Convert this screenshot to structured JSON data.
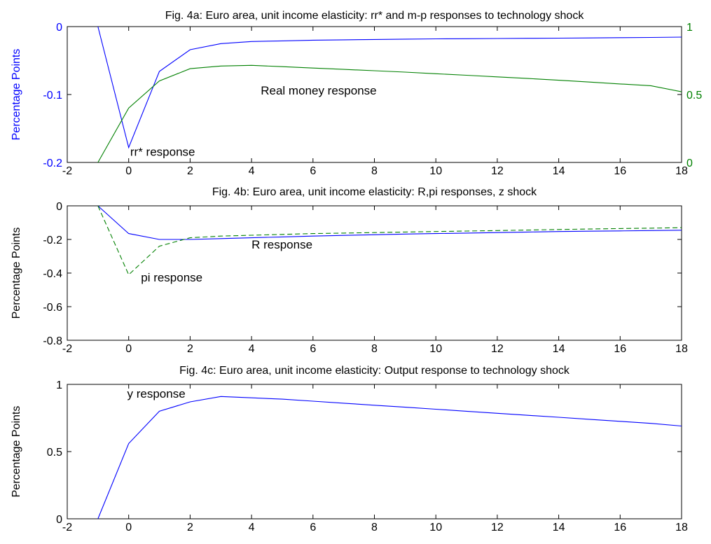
{
  "chart_data": [
    {
      "type": "line",
      "title": "Fig. 4a: Euro area, unit income elasticity: rr* and m-p responses to technology shock",
      "xlabel": "",
      "ylabel": "Percentage Points",
      "xlim": [
        -2,
        18
      ],
      "xticks": [
        "-2",
        "0",
        "2",
        "4",
        "6",
        "8",
        "10",
        "12",
        "14",
        "16",
        "18"
      ],
      "ylim": [
        -0.2,
        0
      ],
      "yticks": [
        "0",
        "-0.1",
        "-0.2"
      ],
      "y2lim": [
        0,
        1
      ],
      "y2ticks": [
        "1",
        "0.5",
        "0"
      ],
      "ylabel_color": "#0000ff",
      "y2_color": "#008000",
      "grid": false,
      "x": [
        -1,
        0,
        1,
        2,
        3,
        4,
        5,
        6,
        7,
        8,
        9,
        10,
        11,
        12,
        13,
        14,
        15,
        16,
        17,
        18
      ],
      "series": [
        {
          "axis": "left",
          "color": "#0000ff",
          "dash": "solid",
          "values": [
            0,
            -0.178,
            -0.066,
            -0.034,
            -0.025,
            -0.022,
            -0.021,
            -0.02,
            -0.0195,
            -0.019,
            -0.0185,
            -0.018,
            -0.0178,
            -0.0175,
            -0.0172,
            -0.017,
            -0.0167,
            -0.0163,
            -0.016,
            -0.0155
          ]
        },
        {
          "axis": "right",
          "color": "#008000",
          "dash": "solid",
          "values": [
            0,
            0.4,
            0.6,
            0.69,
            0.71,
            0.715,
            0.705,
            0.695,
            0.685,
            0.675,
            0.665,
            0.653,
            0.642,
            0.63,
            0.618,
            0.605,
            0.592,
            0.578,
            0.565,
            0.52
          ]
        }
      ],
      "annotations": [
        {
          "text": "Real money response",
          "x": 4.3,
          "y": -0.1
        },
        {
          "text": "rr* response",
          "x": 0.05,
          "y": -0.19
        }
      ]
    },
    {
      "type": "line",
      "title": "Fig. 4b: Euro area, unit income elasticity: R,pi responses, z shock",
      "xlabel": "",
      "ylabel": "Percentage Points",
      "xlim": [
        -2,
        18
      ],
      "xticks": [
        "-2",
        "0",
        "2",
        "4",
        "6",
        "8",
        "10",
        "12",
        "14",
        "16",
        "18"
      ],
      "ylim": [
        -0.8,
        0
      ],
      "yticks": [
        "0",
        "-0.2",
        "-0.4",
        "-0.6",
        "-0.8"
      ],
      "grid": false,
      "x": [
        -1,
        0,
        1,
        2,
        3,
        4,
        5,
        6,
        7,
        8,
        9,
        10,
        11,
        12,
        13,
        14,
        15,
        16,
        17,
        18
      ],
      "series": [
        {
          "color": "#0000ff",
          "dash": "solid",
          "values": [
            0,
            -0.165,
            -0.2,
            -0.2,
            -0.195,
            -0.19,
            -0.185,
            -0.18,
            -0.176,
            -0.172,
            -0.168,
            -0.165,
            -0.162,
            -0.159,
            -0.156,
            -0.153,
            -0.151,
            -0.149,
            -0.147,
            -0.145
          ]
        },
        {
          "color": "#008000",
          "dash": "dashed",
          "values": [
            0,
            -0.41,
            -0.24,
            -0.19,
            -0.18,
            -0.175,
            -0.17,
            -0.165,
            -0.162,
            -0.159,
            -0.156,
            -0.153,
            -0.15,
            -0.147,
            -0.144,
            -0.141,
            -0.138,
            -0.135,
            -0.133,
            -0.13
          ]
        }
      ],
      "annotations": [
        {
          "text": "R response",
          "x": 4.0,
          "y": -0.255
        },
        {
          "text": "pi response",
          "x": 0.4,
          "y": -0.45
        }
      ]
    },
    {
      "type": "line",
      "title": "Fig. 4c: Euro area, unit income elasticity: Output response to technology shock",
      "xlabel": "",
      "ylabel": "Percentage Points",
      "xlim": [
        -2,
        18
      ],
      "xticks": [
        "-2",
        "0",
        "2",
        "4",
        "6",
        "8",
        "10",
        "12",
        "14",
        "16",
        "18"
      ],
      "ylim": [
        0,
        1
      ],
      "yticks": [
        "1",
        "0.5",
        "0"
      ],
      "grid": false,
      "x": [
        -1,
        0,
        1,
        2,
        3,
        4,
        5,
        6,
        7,
        8,
        9,
        10,
        11,
        12,
        13,
        14,
        15,
        16,
        17,
        18
      ],
      "series": [
        {
          "color": "#0000ff",
          "dash": "solid",
          "values": [
            0,
            0.56,
            0.8,
            0.87,
            0.91,
            0.9,
            0.89,
            0.875,
            0.86,
            0.845,
            0.83,
            0.815,
            0.8,
            0.785,
            0.77,
            0.755,
            0.74,
            0.725,
            0.71,
            0.69
          ]
        }
      ],
      "annotations": [
        {
          "text": "y response",
          "x": -0.05,
          "y": 0.9
        }
      ]
    }
  ]
}
